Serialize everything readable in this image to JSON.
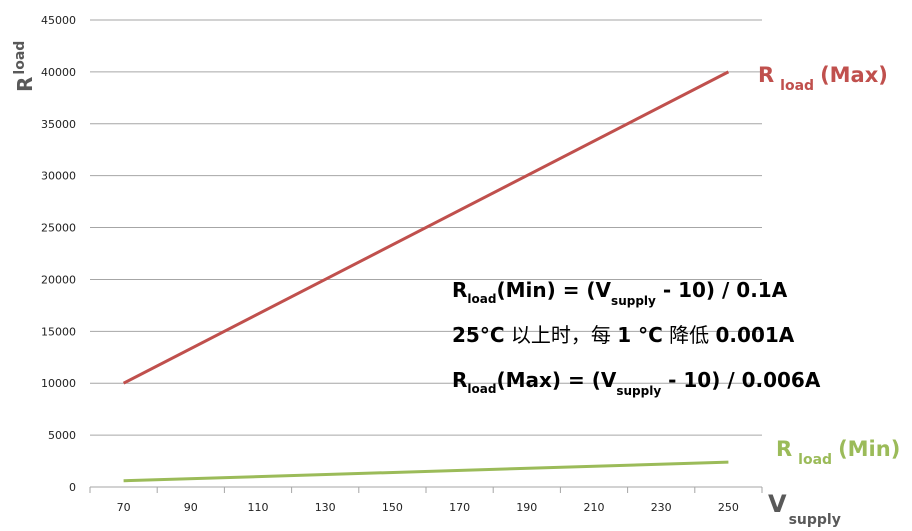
{
  "chart_data": {
    "type": "line",
    "x": [
      70,
      250
    ],
    "xticks": [
      70,
      90,
      110,
      130,
      150,
      170,
      190,
      210,
      230,
      250
    ],
    "xlim": [
      60,
      260
    ],
    "ylim": [
      0,
      45000
    ],
    "yticks": [
      0,
      5000,
      10000,
      15000,
      20000,
      25000,
      30000,
      35000,
      40000,
      45000
    ],
    "grid": "horizontal",
    "ylabel": {
      "main": "R",
      "sub": "load"
    },
    "xlabel": {
      "main": "V",
      "sub": "supply"
    },
    "series": [
      {
        "name": "R load (Max)",
        "label_main": "R",
        "label_sub": "load",
        "label_tail": "(Max)",
        "color": "#c0504d",
        "values": [
          10000,
          40000
        ]
      },
      {
        "name": "R load (Min)",
        "label_main": "R",
        "label_sub": "load",
        "label_tail": "(Min)",
        "color": "#9bbb59",
        "values": [
          600,
          2400
        ]
      }
    ],
    "annotations": {
      "line1": {
        "r": "R",
        "r_sub": "load",
        "a": "(Min) = (V",
        "v_sub": "supply",
        "b": " - 10) / 0.1A"
      },
      "line2": {
        "p1": "25°C",
        "p2": " 以上时，每 ",
        "p3": "1 °C",
        "p4": " 降低 ",
        "p5": "0.001A"
      },
      "line3": {
        "r": "R",
        "r_sub": "load",
        "a": "(Max) = (V",
        "v_sub": "supply",
        "b": " - 10) / 0.006A"
      }
    }
  }
}
